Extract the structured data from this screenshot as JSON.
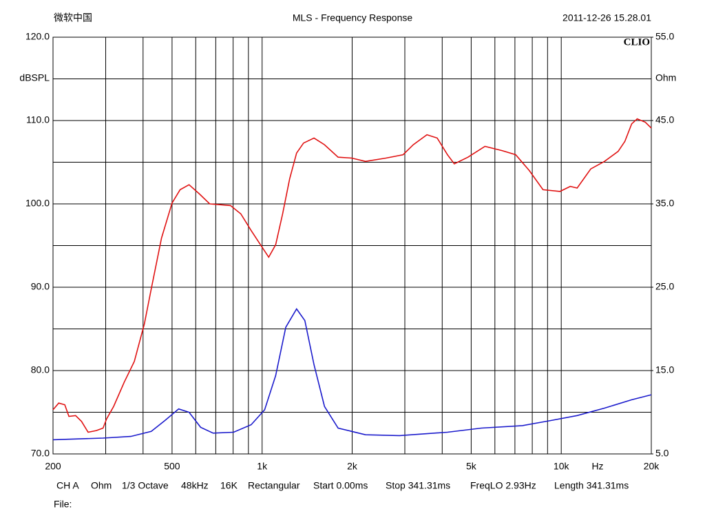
{
  "chart_data": {
    "type": "line",
    "brand": "微软中国",
    "title": "MLS - Frequency Response",
    "date": "2011-12-26 15.28.01",
    "logo": "CLIO",
    "ylabel": "dBSPL",
    "y2label": "Ohm",
    "xunit": "Hz",
    "xscale": "log",
    "xlim": [
      200,
      20000
    ],
    "xticks": [
      200,
      500,
      {
        "value": 1000,
        "label": "1k"
      },
      {
        "value": 2000,
        "label": "2k"
      },
      {
        "value": 5000,
        "label": "5k"
      },
      {
        "value": 10000,
        "label": "10k"
      },
      {
        "value": 20000,
        "label": "20k"
      }
    ],
    "xminor": [
      300,
      400,
      600,
      700,
      800,
      900,
      3000,
      4000,
      6000,
      7000,
      8000,
      9000
    ],
    "ylim": [
      70,
      120
    ],
    "yticks": [
      {
        "value": 70,
        "label": "70.0"
      },
      {
        "value": 80,
        "label": "80.0"
      },
      {
        "value": 90,
        "label": "90.0"
      },
      {
        "value": 100,
        "label": "100.0"
      },
      {
        "value": 110,
        "label": "110.0"
      },
      {
        "value": 120,
        "label": "120.0"
      }
    ],
    "yminor": [
      75,
      85,
      95,
      105,
      115
    ],
    "y2lim": [
      5,
      55
    ],
    "y2ticks": [
      {
        "value": 5,
        "label": "5.0"
      },
      {
        "value": 15,
        "label": "15.0"
      },
      {
        "value": 25,
        "label": "25.0"
      },
      {
        "value": 35,
        "label": "35.0"
      },
      {
        "value": 45,
        "label": "45.0"
      },
      {
        "value": 55,
        "label": "55.0"
      }
    ],
    "grid": true,
    "series": [
      {
        "color": "#e01010",
        "axis": "y",
        "x": [
          200,
          209,
          219,
          226,
          238,
          249,
          262,
          279,
          294,
          302,
          319,
          346,
          374,
          404,
          426,
          461,
          500,
          532,
          570,
          617,
          668,
          784,
          849,
          919,
          996,
          1052,
          1110,
          1171,
          1236,
          1304,
          1376,
          1491,
          1616,
          1795,
          1994,
          2216,
          2595,
          2960,
          3202,
          3557,
          3849,
          4165,
          4390,
          4877,
          5558,
          6336,
          7041,
          7822,
          8690,
          9905,
          10720,
          11300,
          12550,
          13950,
          15490,
          16320,
          17200,
          17940,
          19100,
          20000
        ],
        "values": [
          75.3,
          76.1,
          75.9,
          74.5,
          74.6,
          73.9,
          72.6,
          72.8,
          73.1,
          74.2,
          75.7,
          78.6,
          81.1,
          85.6,
          89.8,
          95.9,
          100.1,
          101.7,
          102.3,
          101.2,
          100.0,
          99.8,
          98.8,
          96.8,
          94.9,
          93.6,
          95.1,
          98.8,
          103.0,
          106.1,
          107.3,
          107.9,
          107.1,
          105.6,
          105.5,
          105.1,
          105.5,
          105.9,
          107.1,
          108.3,
          107.9,
          105.9,
          104.8,
          105.6,
          106.9,
          106.4,
          105.9,
          104.0,
          101.7,
          101.5,
          102.1,
          101.9,
          104.2,
          105.1,
          106.3,
          107.5,
          109.6,
          110.2,
          109.8,
          109.1
        ]
      },
      {
        "color": "#1a1acc",
        "axis": "y2",
        "x": [
          200,
          294,
          364,
          426,
          473,
          526,
          570,
          623,
          686,
          803,
          919,
          1020,
          1110,
          1200,
          1304,
          1390,
          1491,
          1616,
          1795,
          2216,
          2880,
          4165,
          5409,
          7420,
          9200,
          11300,
          13950,
          17200,
          20000
        ],
        "values": [
          6.7,
          6.9,
          7.1,
          7.7,
          9.0,
          10.4,
          10.0,
          8.2,
          7.5,
          7.6,
          8.5,
          10.3,
          14.4,
          20.2,
          22.4,
          21.0,
          15.7,
          10.7,
          8.1,
          7.3,
          7.2,
          7.6,
          8.1,
          8.4,
          9.0,
          9.6,
          10.5,
          11.5,
          12.1
        ]
      }
    ],
    "footer": [
      "CH A",
      "Ohm",
      "1/3 Octave",
      "48kHz",
      "16K",
      "Rectangular",
      "Start 0.00ms",
      "Stop 341.31ms",
      "FreqLO 2.93Hz",
      "Length 341.31ms"
    ],
    "file": "File:"
  }
}
